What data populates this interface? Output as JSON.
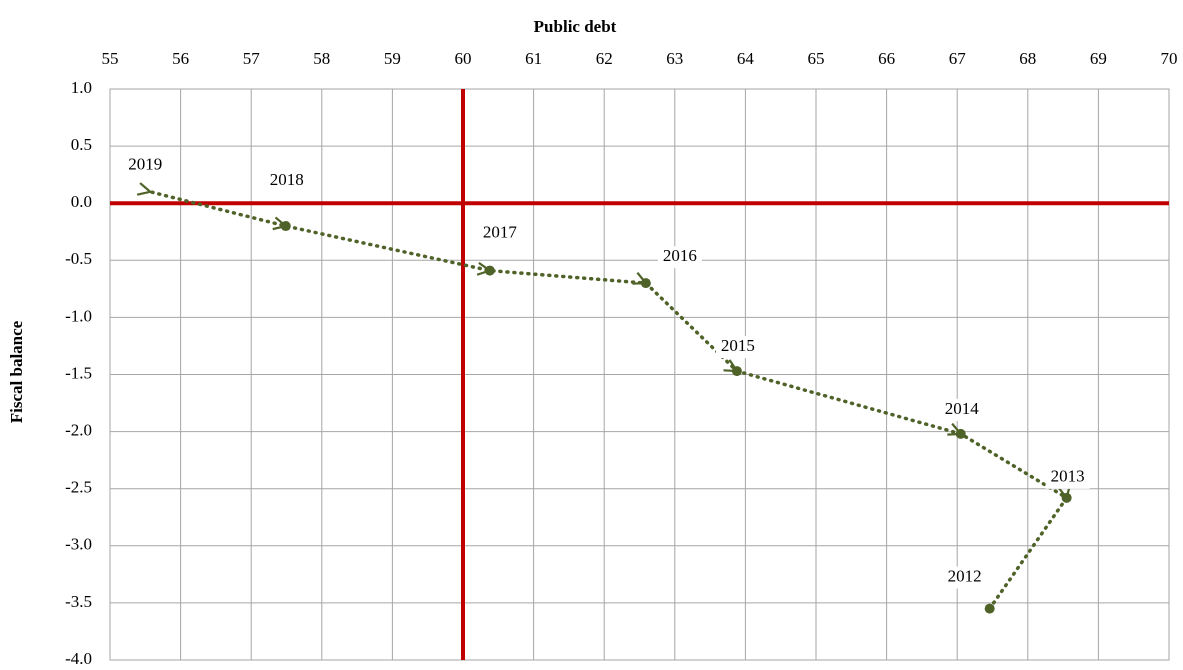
{
  "chart_data": {
    "type": "connected-scatter",
    "xlabel": "Public debt",
    "ylabel": "Fiscal balance",
    "series": [
      {
        "color": "#4f6228",
        "labels": [
          "2012",
          "2013",
          "2014",
          "2015",
          "2016",
          "2017",
          "2018",
          "2019"
        ],
        "x": [
          67.46,
          68.55,
          67.05,
          63.88,
          62.59,
          60.38,
          57.49,
          55.57
        ],
        "values": [
          -3.55,
          -2.58,
          -2.02,
          -1.47,
          -0.7,
          -0.59,
          -0.2,
          0.1
        ]
      }
    ],
    "xlim": [
      55,
      70
    ],
    "xticks": [
      55,
      56,
      57,
      58,
      59,
      60,
      61,
      62,
      63,
      64,
      65,
      66,
      67,
      68,
      69,
      70
    ],
    "ylim": [
      -4,
      1
    ],
    "yticks": [
      {
        "value": 1,
        "label": "1.0"
      },
      {
        "value": 0.5,
        "label": "0.5"
      },
      {
        "value": 0,
        "label": "0.0"
      },
      {
        "value": -0.5,
        "label": "-0.5"
      },
      {
        "value": -1,
        "label": "-1.0"
      },
      {
        "value": -1.5,
        "label": "-1.5"
      },
      {
        "value": -2,
        "label": "-2.0"
      },
      {
        "value": -2.5,
        "label": "-2.5"
      },
      {
        "value": -3,
        "label": "-3.0"
      },
      {
        "value": -3.5,
        "label": "-3.5"
      },
      {
        "value": -4,
        "label": "-4.0"
      }
    ],
    "grid": true,
    "reference_lines": [
      {
        "axis": "x",
        "value": 60,
        "color": "#c00000"
      },
      {
        "axis": "y",
        "value": 0,
        "color": "#c00000"
      }
    ]
  }
}
